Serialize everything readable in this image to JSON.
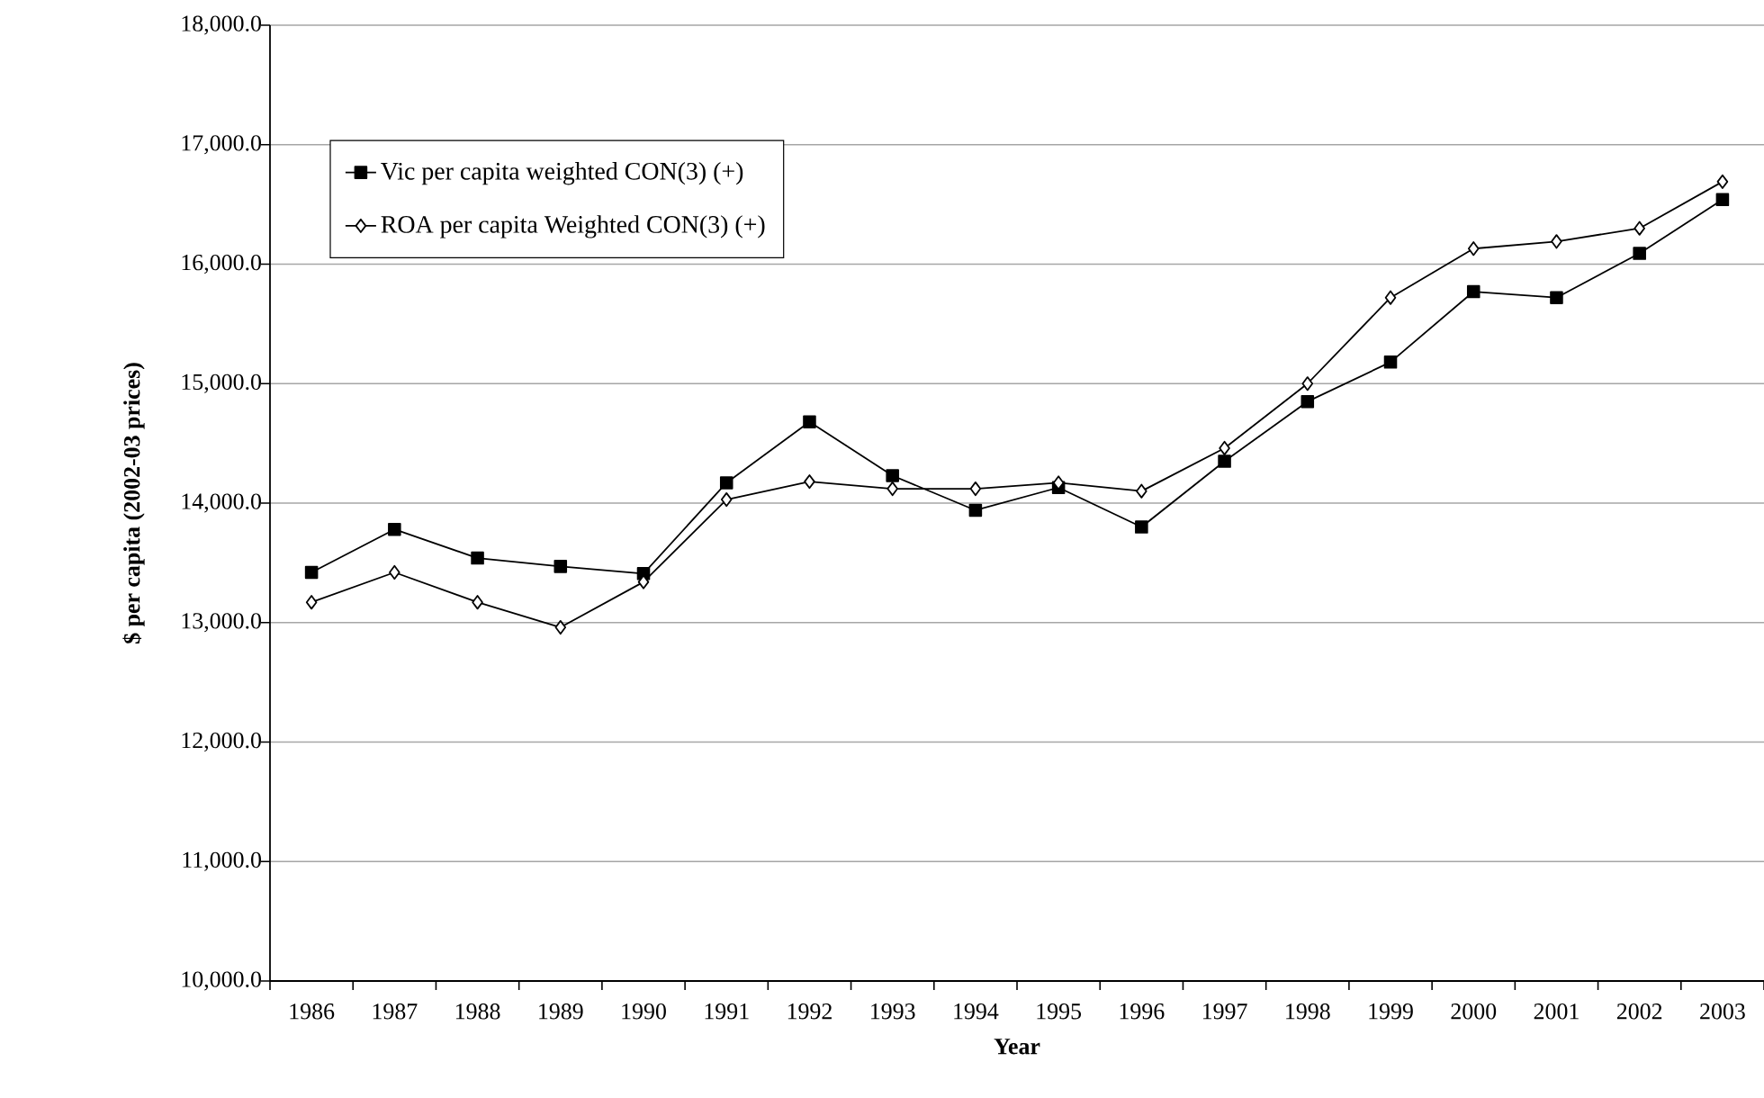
{
  "chart_data": {
    "type": "line",
    "xlabel": "Year",
    "ylabel": "$ per capita (2002-03 prices)",
    "categories": [
      "1986",
      "1987",
      "1988",
      "1989",
      "1990",
      "1991",
      "1992",
      "1993",
      "1994",
      "1995",
      "1996",
      "1997",
      "1998",
      "1999",
      "2000",
      "2001",
      "2002",
      "2003"
    ],
    "series": [
      {
        "name": "Vic per capita weighted CON(3) (+)",
        "color": "#000000",
        "marker": "square",
        "values": [
          13420,
          13780,
          13540,
          13470,
          13410,
          14170,
          14680,
          14230,
          13940,
          14130,
          13800,
          14350,
          14850,
          15180,
          15770,
          15720,
          16090,
          16540
        ]
      },
      {
        "name": "ROA per capita Weighted CON(3) (+)",
        "color": "#000000",
        "marker": "diamond",
        "values": [
          13170,
          13420,
          13170,
          12960,
          13340,
          14030,
          14180,
          14120,
          14120,
          14170,
          14100,
          14460,
          15000,
          15720,
          16130,
          16190,
          16300,
          16690
        ]
      }
    ],
    "ylim": [
      10000,
      18000
    ],
    "yticks": [
      {
        "value": 10000,
        "label": "10,000.0"
      },
      {
        "value": 11000,
        "label": "11,000.0"
      },
      {
        "value": 12000,
        "label": "12,000.0"
      },
      {
        "value": 13000,
        "label": "13,000.0"
      },
      {
        "value": 14000,
        "label": "14,000.0"
      },
      {
        "value": 15000,
        "label": "15,000.0"
      },
      {
        "value": 16000,
        "label": "16,000.0"
      },
      {
        "value": 17000,
        "label": "17,000.0"
      },
      {
        "value": 18000,
        "label": "18,000.0"
      }
    ],
    "grid": "y",
    "legend": "top left",
    "line_style": "solid"
  }
}
